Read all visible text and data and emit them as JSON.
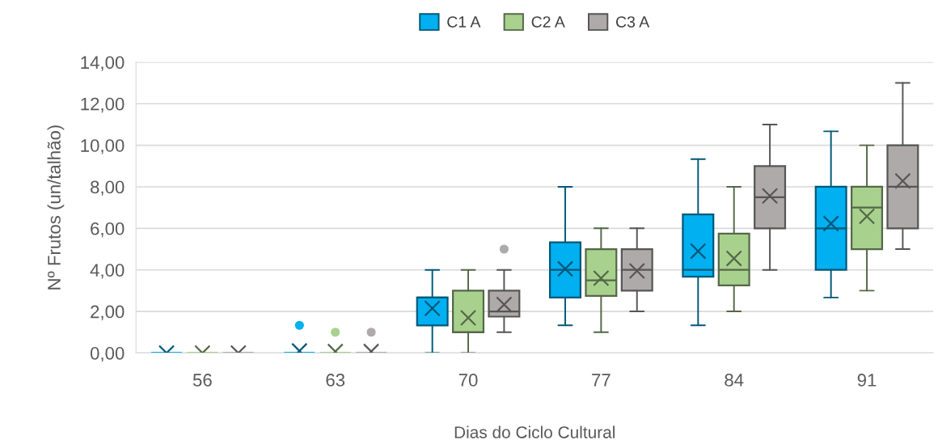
{
  "chart_data": {
    "type": "box",
    "xlabel": "Dias do Ciclo Cultural",
    "ylabel": "Nº Frutos (un/talhão)",
    "categories": [
      "56",
      "63",
      "70",
      "77",
      "84",
      "91"
    ],
    "ylim": [
      0,
      14
    ],
    "yticks": [
      {
        "value": 0,
        "label": "0,00"
      },
      {
        "value": 2,
        "label": "2,00"
      },
      {
        "value": 4,
        "label": "4,00"
      },
      {
        "value": 6,
        "label": "6,00"
      },
      {
        "value": 8,
        "label": "8,00"
      },
      {
        "value": 10,
        "label": "10,00"
      },
      {
        "value": 12,
        "label": "12,00"
      },
      {
        "value": 14,
        "label": "14,00"
      }
    ],
    "grid": "y",
    "legend": "top",
    "series": [
      {
        "name": "C1 A",
        "color": "#00b0f0",
        "boxes": [
          {
            "low": 0,
            "q1": 0,
            "median": 0,
            "q3": 0,
            "high": 0,
            "mean": 0
          },
          {
            "low": 0,
            "q1": 0,
            "median": 0,
            "q3": 0,
            "high": 0,
            "mean": 0.1,
            "outliers": [
              1.33
            ]
          },
          {
            "low": 0,
            "q1": 1.33,
            "median": 2.67,
            "q3": 2.67,
            "high": 4,
            "mean": 2.15
          },
          {
            "low": 1.33,
            "q1": 2.67,
            "median": 4,
            "q3": 5.33,
            "high": 8,
            "mean": 4.05
          },
          {
            "low": 1.33,
            "q1": 3.67,
            "median": 4,
            "q3": 6.67,
            "high": 9.33,
            "mean": 4.9
          },
          {
            "low": 2.67,
            "q1": 4,
            "median": 6,
            "q3": 8,
            "high": 10.67,
            "mean": 6.23
          }
        ]
      },
      {
        "name": "C2 A",
        "color": "#a9d18e",
        "boxes": [
          {
            "low": 0,
            "q1": 0,
            "median": 0,
            "q3": 0,
            "high": 0,
            "mean": 0
          },
          {
            "low": 0,
            "q1": 0,
            "median": 0,
            "q3": 0,
            "high": 0,
            "mean": 0.07,
            "outliers": [
              1
            ]
          },
          {
            "low": 0,
            "q1": 1,
            "median": 1,
            "q3": 3,
            "high": 4,
            "mean": 1.69
          },
          {
            "low": 1,
            "q1": 2.75,
            "median": 3.5,
            "q3": 5,
            "high": 6,
            "mean": 3.6
          },
          {
            "low": 2,
            "q1": 3.25,
            "median": 4,
            "q3": 5.75,
            "high": 8,
            "mean": 4.55
          },
          {
            "low": 3,
            "q1": 5,
            "median": 7,
            "q3": 8,
            "high": 10,
            "mean": 6.58
          }
        ]
      },
      {
        "name": "C3 A",
        "color": "#aeaaaa",
        "boxes": [
          {
            "low": 0,
            "q1": 0,
            "median": 0,
            "q3": 0,
            "high": 0,
            "mean": 0
          },
          {
            "low": 0,
            "q1": 0,
            "median": 0,
            "q3": 0,
            "high": 0,
            "mean": 0.07,
            "outliers": [
              1
            ]
          },
          {
            "low": 1,
            "q1": 1.75,
            "median": 2,
            "q3": 3,
            "high": 4,
            "mean": 2.33,
            "outliers": [
              5
            ]
          },
          {
            "low": 2,
            "q1": 3,
            "median": 4,
            "q3": 5,
            "high": 6,
            "mean": 3.95
          },
          {
            "low": 4,
            "q1": 6,
            "median": 7.5,
            "q3": 9,
            "high": 11,
            "mean": 7.56
          },
          {
            "low": 5,
            "q1": 6,
            "median": 8,
            "q3": 10,
            "high": 13,
            "mean": 8.28
          }
        ]
      }
    ]
  }
}
